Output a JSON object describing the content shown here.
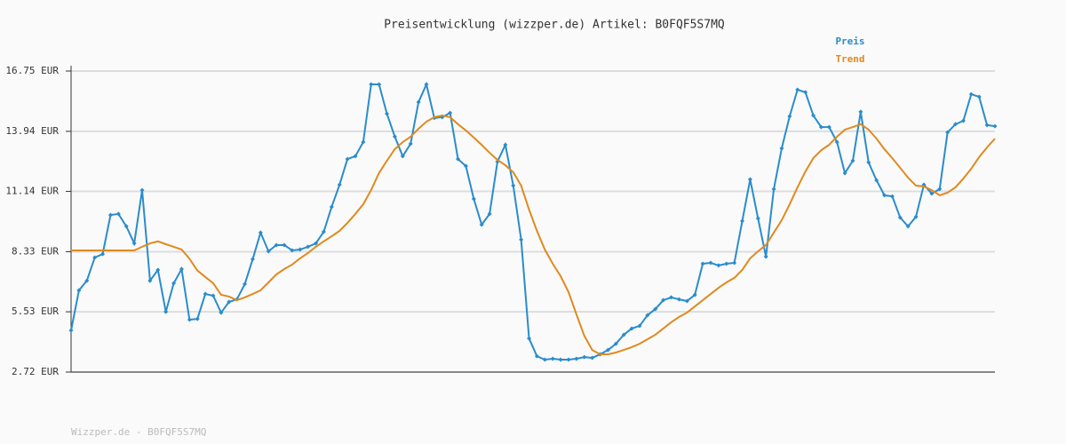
{
  "chart_data": {
    "type": "line",
    "title": "Preisentwicklung (wizzper.de) Artikel: B0FQF5S7MQ",
    "footer": "Wizzper.de - B0FQF5S7MQ",
    "legend": "top-right",
    "grid": true,
    "ylim": [
      2.72,
      16.75
    ],
    "yticks": [
      {
        "value": 2.72,
        "label": "2.72 EUR"
      },
      {
        "value": 5.53,
        "label": "5.53 EUR"
      },
      {
        "value": 8.33,
        "label": "8.33 EUR"
      },
      {
        "value": 11.14,
        "label": "11.14 EUR"
      },
      {
        "value": 13.94,
        "label": "13.94 EUR"
      },
      {
        "value": 16.75,
        "label": "16.75 EUR"
      }
    ],
    "categories": [
      null,
      null,
      null,
      null,
      null,
      null,
      null,
      null,
      null,
      null,
      null,
      null,
      null,
      null,
      null,
      null,
      null,
      null,
      null,
      null,
      null,
      null,
      null,
      null,
      null,
      null,
      null,
      null,
      null,
      null,
      null,
      null,
      null,
      null,
      null,
      null,
      null,
      null,
      null,
      null,
      null,
      null,
      null,
      null,
      null,
      null,
      null,
      null,
      null,
      null,
      null,
      null,
      null,
      null,
      null,
      null,
      null,
      null,
      null,
      null,
      null,
      null,
      null,
      null,
      null,
      null,
      null,
      null,
      null,
      null,
      null,
      null,
      null,
      null,
      null,
      null,
      null,
      null,
      null,
      null,
      null,
      null,
      null,
      null,
      null,
      null,
      null,
      null,
      null,
      null,
      null,
      null,
      null,
      null,
      null,
      null,
      null,
      null,
      null,
      null,
      null,
      null,
      null,
      null,
      null,
      null,
      null,
      null,
      null,
      null,
      null,
      null,
      null,
      null,
      null,
      null,
      null,
      null
    ],
    "series": [
      {
        "name": "Preis",
        "color": "#2a8ccc",
        "markers": true,
        "values": [
          4.66,
          6.53,
          6.98,
          8.06,
          8.22,
          10.04,
          10.09,
          9.51,
          8.72,
          11.2,
          6.98,
          7.48,
          5.53,
          6.86,
          7.52,
          5.16,
          5.2,
          6.36,
          6.28,
          5.49,
          5.99,
          6.11,
          6.82,
          7.98,
          9.22,
          8.35,
          8.64,
          8.64,
          8.39,
          8.43,
          8.56,
          8.72,
          9.26,
          10.42,
          11.45,
          12.65,
          12.78,
          13.44,
          16.13,
          16.13,
          14.76,
          13.69,
          12.78,
          13.36,
          15.3,
          16.13,
          14.56,
          14.6,
          14.8,
          12.65,
          12.32,
          10.79,
          9.59,
          10.09,
          12.53,
          13.31,
          11.41,
          8.89,
          4.29,
          3.46,
          3.3,
          3.34,
          3.3,
          3.3,
          3.34,
          3.42,
          3.38,
          3.55,
          3.75,
          4.04,
          4.46,
          4.75,
          4.87,
          5.37,
          5.66,
          6.07,
          6.2,
          6.11,
          6.03,
          6.32,
          7.77,
          7.81,
          7.69,
          7.77,
          7.81,
          9.76,
          11.7,
          9.88,
          8.1,
          11.25,
          13.15,
          14.64,
          15.88,
          15.76,
          14.68,
          14.14,
          14.14,
          13.44,
          11.99,
          12.57,
          14.85,
          12.49,
          11.66,
          10.96,
          10.91,
          9.92,
          9.51,
          9.96,
          11.45,
          11.04,
          11.25,
          13.89,
          14.27,
          14.43,
          15.67,
          15.55,
          14.23,
          14.18
        ]
      },
      {
        "name": "Trend",
        "color": "#e08a1e",
        "markers": false,
        "values": [
          8.39,
          8.39,
          8.39,
          8.39,
          8.39,
          8.39,
          8.39,
          8.39,
          8.39,
          8.56,
          8.72,
          8.81,
          8.68,
          8.56,
          8.43,
          8.0,
          7.45,
          7.15,
          6.86,
          6.32,
          6.24,
          6.07,
          6.2,
          6.36,
          6.53,
          6.9,
          7.27,
          7.52,
          7.73,
          8.02,
          8.27,
          8.56,
          8.81,
          9.05,
          9.3,
          9.67,
          10.09,
          10.54,
          11.2,
          12.0,
          12.57,
          13.11,
          13.44,
          13.69,
          14.06,
          14.39,
          14.6,
          14.68,
          14.6,
          14.27,
          13.98,
          13.65,
          13.31,
          12.94,
          12.61,
          12.36,
          12.03,
          11.41,
          10.29,
          9.3,
          8.43,
          7.77,
          7.19,
          6.45,
          5.41,
          4.41,
          3.75,
          3.55,
          3.55,
          3.63,
          3.75,
          3.88,
          4.04,
          4.25,
          4.46,
          4.75,
          5.04,
          5.29,
          5.49,
          5.78,
          6.07,
          6.36,
          6.65,
          6.9,
          7.11,
          7.48,
          8.02,
          8.35,
          8.64,
          9.22,
          9.8,
          10.54,
          11.33,
          12.07,
          12.69,
          13.06,
          13.31,
          13.69,
          14.02,
          14.14,
          14.27,
          14.02,
          13.6,
          13.11,
          12.69,
          12.24,
          11.78,
          11.41,
          11.37,
          11.2,
          10.96,
          11.08,
          11.33,
          11.74,
          12.2,
          12.74,
          13.19,
          13.6
        ]
      }
    ]
  }
}
